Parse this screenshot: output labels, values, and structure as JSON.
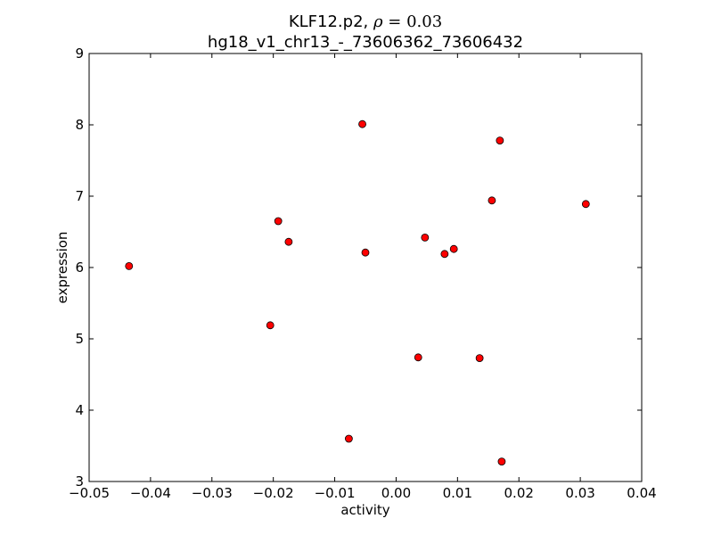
{
  "chart_data": {
    "type": "scatter",
    "title_prefix": "KLF12.p2, ",
    "title_rho_symbol": "ρ",
    "title_rho_eq": " = 0.03",
    "subtitle": "hg18_v1_chr13_-_73606362_73606432",
    "xlabel": "activity",
    "ylabel": "expression",
    "xlim": [
      -0.05,
      0.04
    ],
    "ylim": [
      3,
      9
    ],
    "xticks": [
      -0.05,
      -0.04,
      -0.03,
      -0.02,
      -0.01,
      0.0,
      0.01,
      0.02,
      0.03,
      0.04
    ],
    "xtick_labels": [
      "−0.05",
      "−0.04",
      "−0.03",
      "−0.02",
      "−0.01",
      "0.00",
      "0.01",
      "0.02",
      "0.03",
      "0.04"
    ],
    "yticks": [
      3,
      4,
      5,
      6,
      7,
      8,
      9
    ],
    "ytick_labels": [
      "3",
      "4",
      "5",
      "6",
      "7",
      "8",
      "9"
    ],
    "grid": false,
    "marker_color": "#ff0000",
    "marker_edge": "#000000",
    "points": [
      {
        "x": -0.0435,
        "y": 6.02
      },
      {
        "x": -0.0205,
        "y": 5.19
      },
      {
        "x": -0.0192,
        "y": 6.65
      },
      {
        "x": -0.0175,
        "y": 6.36
      },
      {
        "x": -0.0077,
        "y": 3.6
      },
      {
        "x": -0.0055,
        "y": 8.01
      },
      {
        "x": -0.005,
        "y": 6.21
      },
      {
        "x": 0.0036,
        "y": 4.74
      },
      {
        "x": 0.0047,
        "y": 6.42
      },
      {
        "x": 0.0079,
        "y": 6.19
      },
      {
        "x": 0.0094,
        "y": 6.26
      },
      {
        "x": 0.0136,
        "y": 4.73
      },
      {
        "x": 0.0156,
        "y": 6.94
      },
      {
        "x": 0.0169,
        "y": 7.78
      },
      {
        "x": 0.0172,
        "y": 3.28
      },
      {
        "x": 0.0309,
        "y": 6.89
      }
    ]
  }
}
